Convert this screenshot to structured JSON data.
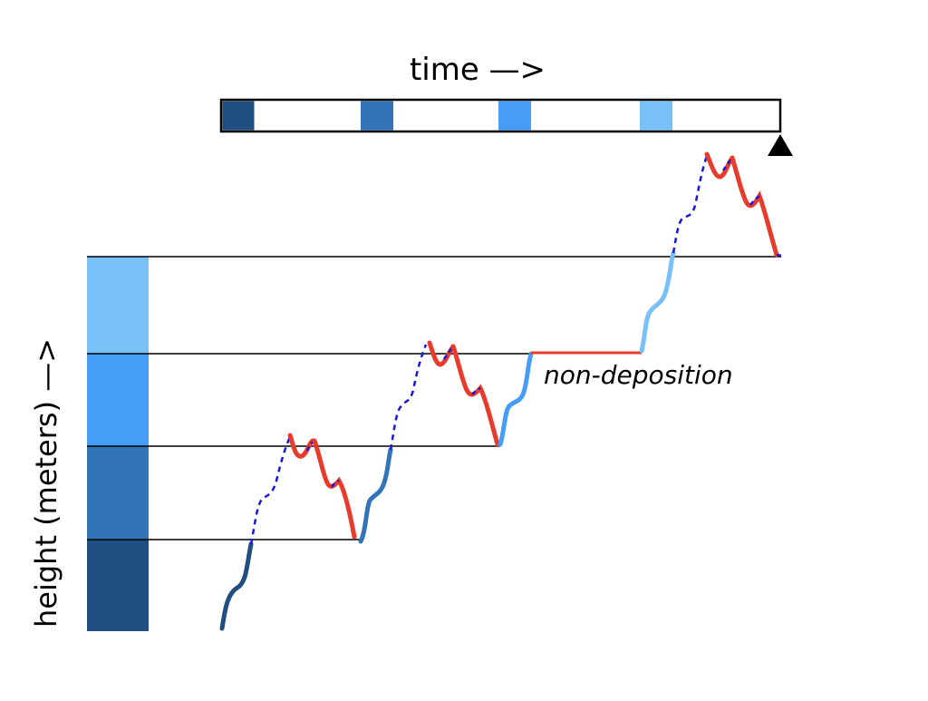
{
  "time_label": "time —>",
  "height_label": "height (meters) —>",
  "non_deposition_label": "non-deposition",
  "colors": {
    "unit1": "#1f4e80",
    "unit2": "#3274b8",
    "unit3": "#459df7",
    "unit4": "#77c0fa",
    "erosion": "#e73c2b",
    "hiatus": "#1818d8",
    "line": "#000000"
  },
  "icons": {
    "present_marker": "triangle-up-icon"
  }
}
